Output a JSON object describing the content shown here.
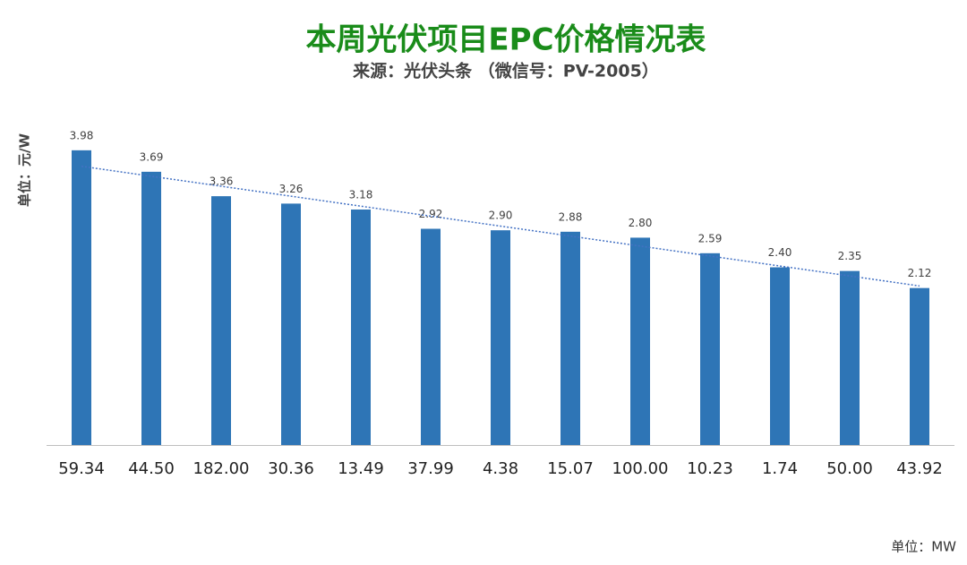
{
  "chart_data": {
    "type": "bar",
    "title": "本周光伏项目EPC价格情况表",
    "subtitle": "来源：光伏头条 （微信号：PV-2005）",
    "y_label": "单位：元/W",
    "x_label": "单位：MW",
    "categories": [
      "59.34",
      "44.50",
      "182.00",
      "30.36",
      "13.49",
      "37.99",
      "4.38",
      "15.07",
      "100.00",
      "10.23",
      "1.74",
      "50.00",
      "43.92"
    ],
    "values": [
      3.98,
      3.69,
      3.36,
      3.26,
      3.18,
      2.92,
      2.9,
      2.88,
      2.8,
      2.59,
      2.4,
      2.35,
      2.12
    ],
    "value_labels": [
      "3.98",
      "3.69",
      "3.36",
      "3.26",
      "3.18",
      "2.92",
      "2.90",
      "2.88",
      "2.80",
      "2.59",
      "2.40",
      "2.35",
      "2.12"
    ],
    "color": "#2e75b6",
    "trendline": true,
    "trendline_color": "#4472c4"
  }
}
